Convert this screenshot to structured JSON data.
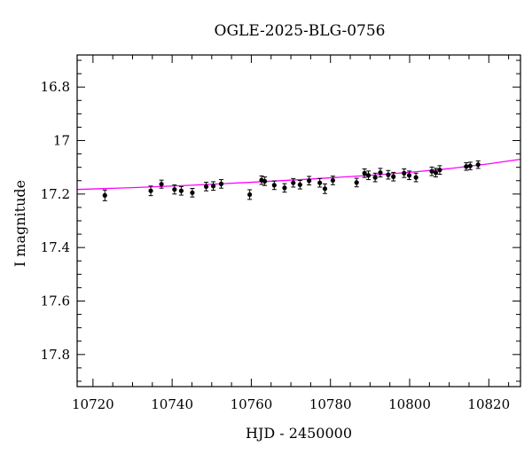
{
  "chart_data": {
    "type": "scatter",
    "title": "OGLE-2025-BLG-0756",
    "xlabel": "HJD - 2450000",
    "ylabel": "I magnitude",
    "xlim": [
      10716,
      10828
    ],
    "ylim": [
      17.92,
      16.68
    ],
    "y_inverted": true,
    "xticks": [
      10720,
      10740,
      10760,
      10780,
      10800,
      10820
    ],
    "yticks": [
      16.8,
      17,
      17.2,
      17.4,
      17.6,
      17.8
    ],
    "xtick_labels": [
      "10720",
      "10740",
      "10760",
      "10780",
      "10800",
      "10820"
    ],
    "ytick_labels": [
      "16.8",
      "17",
      "17.2",
      "17.4",
      "17.6",
      "17.8"
    ],
    "grid": false,
    "series": [
      {
        "kind": "points_with_errorbars",
        "color": "#000000",
        "x": [
          10723.0,
          10734.6,
          10737.3,
          10740.6,
          10742.3,
          10745.1,
          10748.6,
          10750.4,
          10752.4,
          10759.6,
          10762.6,
          10763.4,
          10765.8,
          10768.4,
          10770.6,
          10772.3,
          10774.6,
          10777.3,
          10778.6,
          10780.6,
          10786.6,
          10788.6,
          10789.6,
          10791.3,
          10792.6,
          10794.6,
          10795.9,
          10798.6,
          10799.9,
          10801.6,
          10805.6,
          10806.6,
          10807.6,
          10814.3,
          10815.3,
          10817.3
        ],
        "y": [
          17.205,
          17.188,
          17.163,
          17.183,
          17.188,
          17.195,
          17.172,
          17.17,
          17.162,
          17.202,
          17.148,
          17.152,
          17.167,
          17.177,
          17.158,
          17.165,
          17.15,
          17.158,
          17.18,
          17.149,
          17.157,
          17.122,
          17.13,
          17.138,
          17.12,
          17.128,
          17.135,
          17.122,
          17.13,
          17.138,
          17.115,
          17.12,
          17.11,
          17.097,
          17.095,
          17.09
        ],
        "yerr": [
          0.02,
          0.018,
          0.015,
          0.017,
          0.016,
          0.016,
          0.016,
          0.016,
          0.016,
          0.018,
          0.016,
          0.016,
          0.016,
          0.016,
          0.016,
          0.016,
          0.016,
          0.016,
          0.018,
          0.016,
          0.016,
          0.016,
          0.016,
          0.016,
          0.016,
          0.016,
          0.016,
          0.016,
          0.016,
          0.016,
          0.016,
          0.016,
          0.016,
          0.014,
          0.014,
          0.014
        ]
      },
      {
        "kind": "model_curve",
        "color": "#ff00ff",
        "x": [
          10716,
          10730,
          10745,
          10760,
          10775,
          10790,
          10800,
          10810,
          10820,
          10828
        ],
        "y": [
          17.183,
          17.176,
          17.167,
          17.156,
          17.144,
          17.13,
          17.119,
          17.105,
          17.087,
          17.07
        ]
      }
    ]
  }
}
